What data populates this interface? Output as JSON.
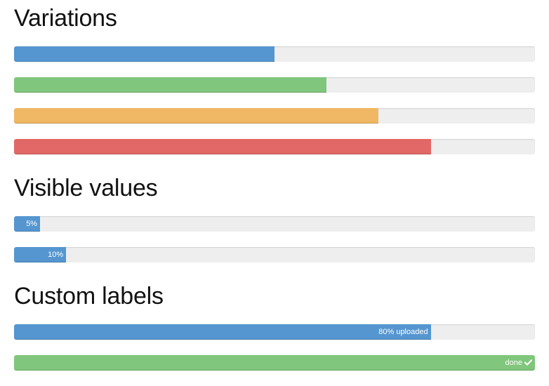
{
  "colors": {
    "primary": "#5596d0",
    "success": "#80c67c",
    "warning": "#f0b764",
    "danger": "#e16866",
    "track": "#eeeeee"
  },
  "sections": {
    "variations": {
      "title": "Variations",
      "bars": [
        {
          "color": "primary",
          "percent": 50
        },
        {
          "color": "success",
          "percent": 60
        },
        {
          "color": "warning",
          "percent": 70
        },
        {
          "color": "danger",
          "percent": 80
        }
      ]
    },
    "visible_values": {
      "title": "Visible values",
      "bars": [
        {
          "color": "primary",
          "percent": 5,
          "label": "5%"
        },
        {
          "color": "primary",
          "percent": 10,
          "label": "10%"
        }
      ]
    },
    "custom_labels": {
      "title": "Custom labels",
      "bars": [
        {
          "color": "primary",
          "percent": 80,
          "label": "80% uploaded"
        },
        {
          "color": "success",
          "percent": 100,
          "label": "done",
          "icon": "checkmark-icon"
        }
      ]
    }
  }
}
